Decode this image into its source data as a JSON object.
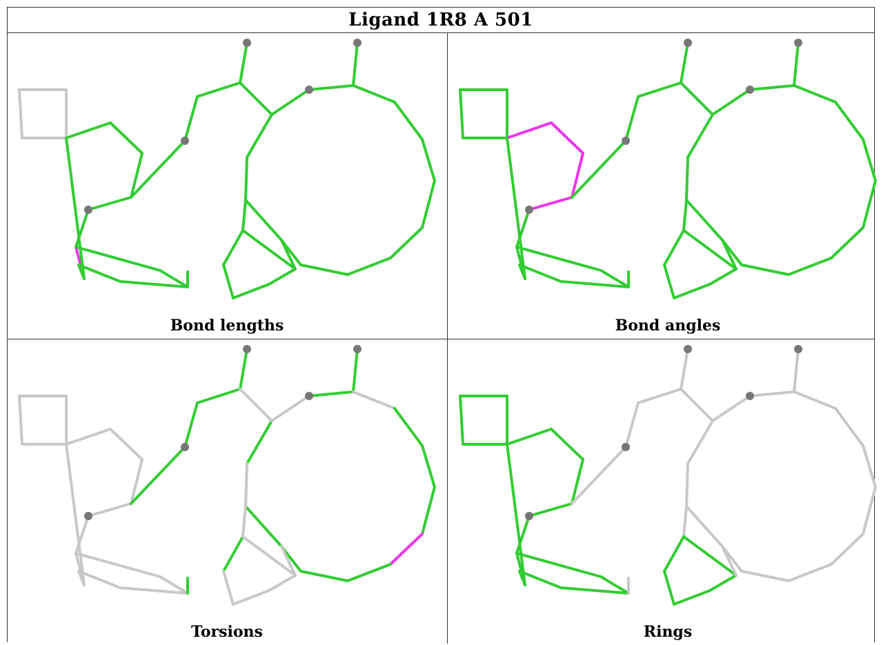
{
  "title": "Ligand 1R8 A 501",
  "colors": {
    "ok": "#33cc33",
    "outlier": "#ee33ee",
    "inactive": "#c8c8c8",
    "atom": "#777777"
  },
  "panels": [
    {
      "caption": "Bond lengths",
      "default": "ok",
      "inactive": [
        [
          0,
          1
        ],
        [
          1,
          2
        ],
        [
          0,
          3
        ],
        [
          2,
          3
        ]
      ],
      "outliers": [
        [
          8,
          9
        ]
      ]
    },
    {
      "caption": "Bond angles",
      "default": "ok",
      "inactive": [],
      "outliers": [
        [
          2,
          4
        ],
        [
          4,
          5
        ],
        [
          5,
          6
        ],
        [
          6,
          7
        ],
        [
          0,
          2
        ]
      ]
    },
    {
      "caption": "Torsions",
      "default": "inactive",
      "green": [
        [
          6,
          12
        ],
        [
          12,
          13
        ],
        [
          13,
          14
        ],
        [
          14,
          15
        ],
        [
          15,
          16
        ],
        [
          16,
          17
        ],
        [
          17,
          19
        ],
        [
          19,
          20
        ],
        [
          20,
          21
        ],
        [
          21,
          22
        ],
        [
          22,
          23
        ],
        [
          23,
          24
        ],
        [
          24,
          25
        ],
        [
          25,
          26
        ],
        [
          26,
          27
        ],
        [
          27,
          28
        ],
        [
          28,
          29
        ],
        [
          29,
          18
        ],
        [
          30,
          31
        ],
        [
          11,
          34
        ]
      ],
      "outliers": [
        [
          25,
          26
        ]
      ]
    },
    {
      "caption": "Rings",
      "default": "inactive",
      "green": [
        [
          0,
          1
        ],
        [
          1,
          2
        ],
        [
          2,
          3
        ],
        [
          0,
          3
        ],
        [
          2,
          4
        ],
        [
          4,
          5
        ],
        [
          5,
          6
        ],
        [
          6,
          7
        ],
        [
          7,
          8
        ],
        [
          8,
          9
        ],
        [
          9,
          2
        ],
        [
          8,
          10
        ],
        [
          10,
          11
        ],
        [
          11,
          32
        ],
        [
          32,
          33
        ],
        [
          33,
          9
        ],
        [
          30,
          31
        ],
        [
          31,
          35
        ],
        [
          35,
          36
        ],
        [
          36,
          37
        ],
        [
          37,
          30
        ]
      ],
      "outliers": []
    }
  ]
}
